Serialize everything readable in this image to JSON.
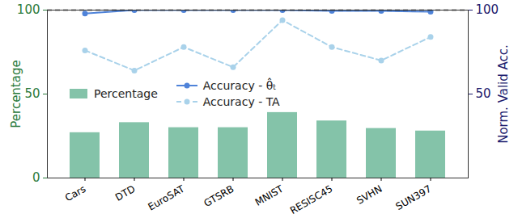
{
  "chart_data": {
    "type": "bar",
    "categories": [
      "Cars",
      "DTD",
      "EuroSAT",
      "GTSRB",
      "MNIST",
      "RESISC45",
      "SVHN",
      "SUN397"
    ],
    "ylabel": "Percentage",
    "y2label": "Norm. Valid Acc.",
    "ylim": [
      0,
      100
    ],
    "yticks": [
      0,
      50,
      100
    ],
    "y2lim": [
      0,
      100
    ],
    "y2ticks": [
      50,
      100
    ],
    "legend": "left",
    "series": [
      {
        "name": "Percentage",
        "type": "bar",
        "color": "#84c3a9",
        "values": [
          27,
          33,
          30,
          30,
          39,
          34,
          29.5,
          28
        ]
      },
      {
        "name": "Accuracy - θ̂ₜ",
        "type": "line",
        "axis": "y2",
        "color": "#4f83d9",
        "marker": "circle",
        "line_style": "solid",
        "values": [
          98,
          100,
          100,
          100,
          100,
          99.5,
          99.5,
          99
        ]
      },
      {
        "name": "Accuracy - TA",
        "type": "line",
        "axis": "y2",
        "color": "#a9d2ea",
        "marker": "circle",
        "line_style": "dashed",
        "values": [
          76,
          64,
          78,
          66,
          94,
          78,
          70,
          84
        ]
      }
    ],
    "reference_line": {
      "value": 100,
      "axis": "y2",
      "color": "#000000",
      "line_style": "dashed"
    }
  }
}
